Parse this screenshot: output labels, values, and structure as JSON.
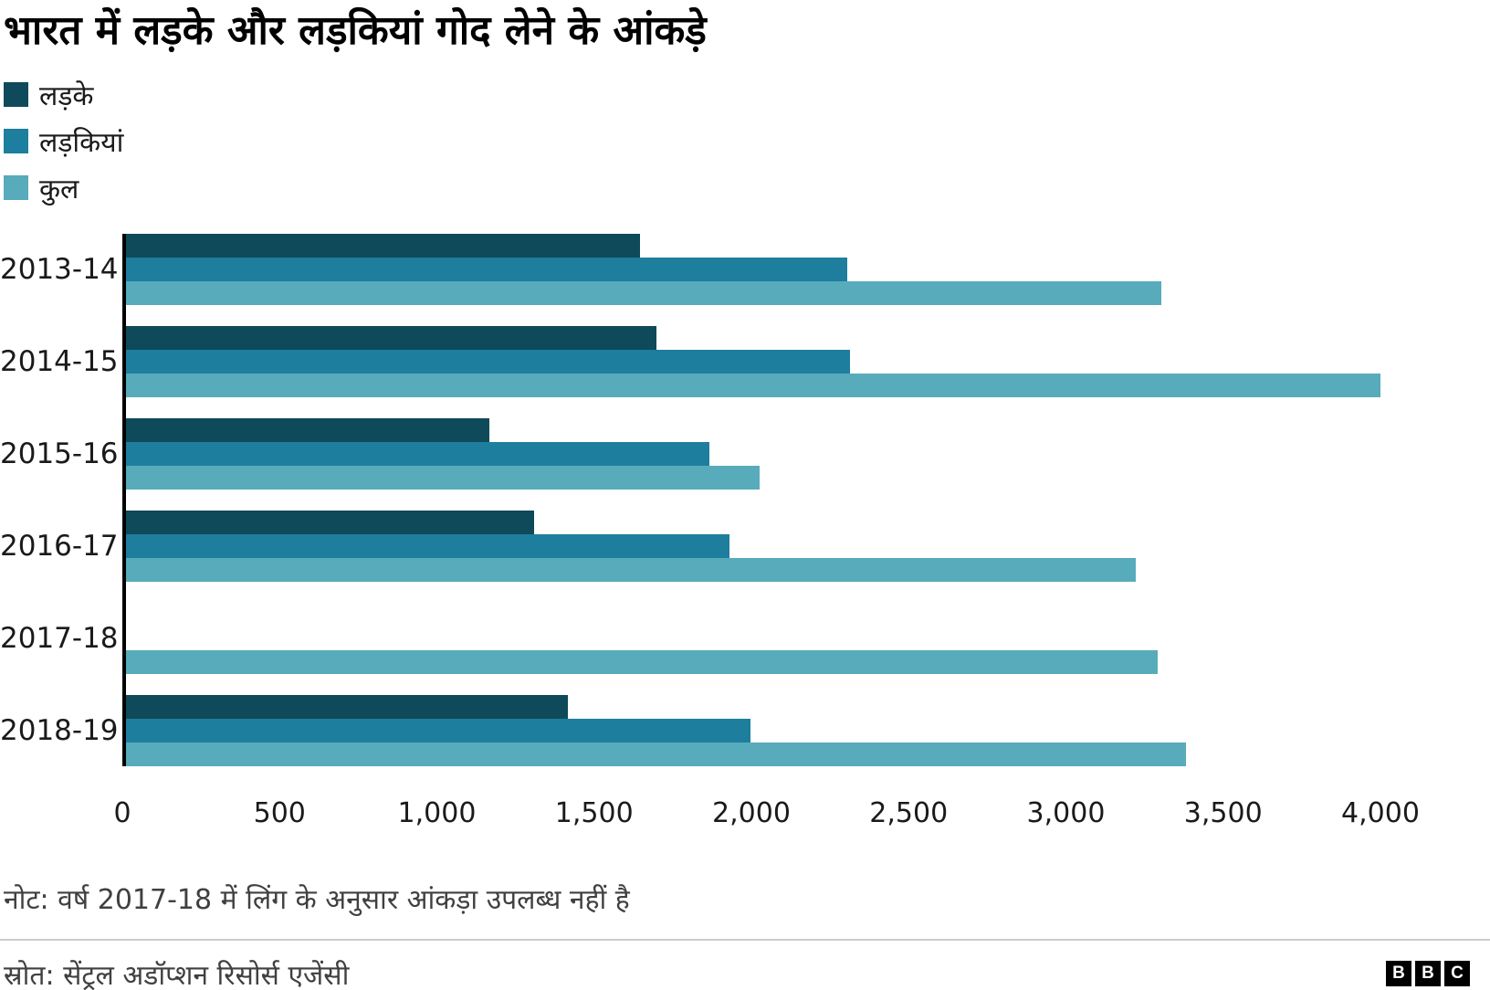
{
  "title": "भारत में लड़के और लड़कियां गोद लेने के आंकड़े",
  "legend": {
    "items": [
      {
        "id": "boys",
        "label": "लड़के",
        "color": "#0e4a5a"
      },
      {
        "id": "girls",
        "label": "लड़कियां",
        "color": "#1e7e9e"
      },
      {
        "id": "total",
        "label": "कुल",
        "color": "#57abbb"
      }
    ]
  },
  "chart_data": {
    "type": "bar",
    "orientation": "horizontal",
    "title": "भारत में लड़के और लड़कियां गोद लेने के आंकड़े",
    "categories": [
      "2013-14",
      "2014-15",
      "2015-16",
      "2016-17",
      "2017-18",
      "2018-19"
    ],
    "series": [
      {
        "id": "boys",
        "name": "लड़के",
        "color": "#0e4a5a",
        "values": [
          1640,
          1690,
          1160,
          1300,
          null,
          1410
        ]
      },
      {
        "id": "girls",
        "name": "लड़कियां",
        "color": "#1e7e9e",
        "values": [
          2300,
          2310,
          1860,
          1925,
          null,
          1990
        ]
      },
      {
        "id": "total",
        "name": "कुल",
        "color": "#57abbb",
        "values": [
          3300,
          4000,
          2020,
          3220,
          3290,
          3380
        ]
      }
    ],
    "xlim": [
      0,
      4000
    ],
    "x_ticks": [
      0,
      500,
      1000,
      1500,
      2000,
      2500,
      3000,
      3500,
      4000
    ],
    "x_tick_labels": [
      "0",
      "500",
      "1,000",
      "1,500",
      "2,000",
      "2,500",
      "3,000",
      "3,500",
      "4,000"
    ],
    "legend_position": "top-left",
    "grid": false,
    "note": "नोट: वर्ष 2017-18 में लिंग के अनुसार आंकड़ा उपलब्ध नहीं है",
    "source": "स्रोत: सेंट्रल अडॉप्शन रिसोर्स एजेंसी"
  },
  "footer": {
    "logo_letters": [
      "B",
      "B",
      "C"
    ]
  }
}
